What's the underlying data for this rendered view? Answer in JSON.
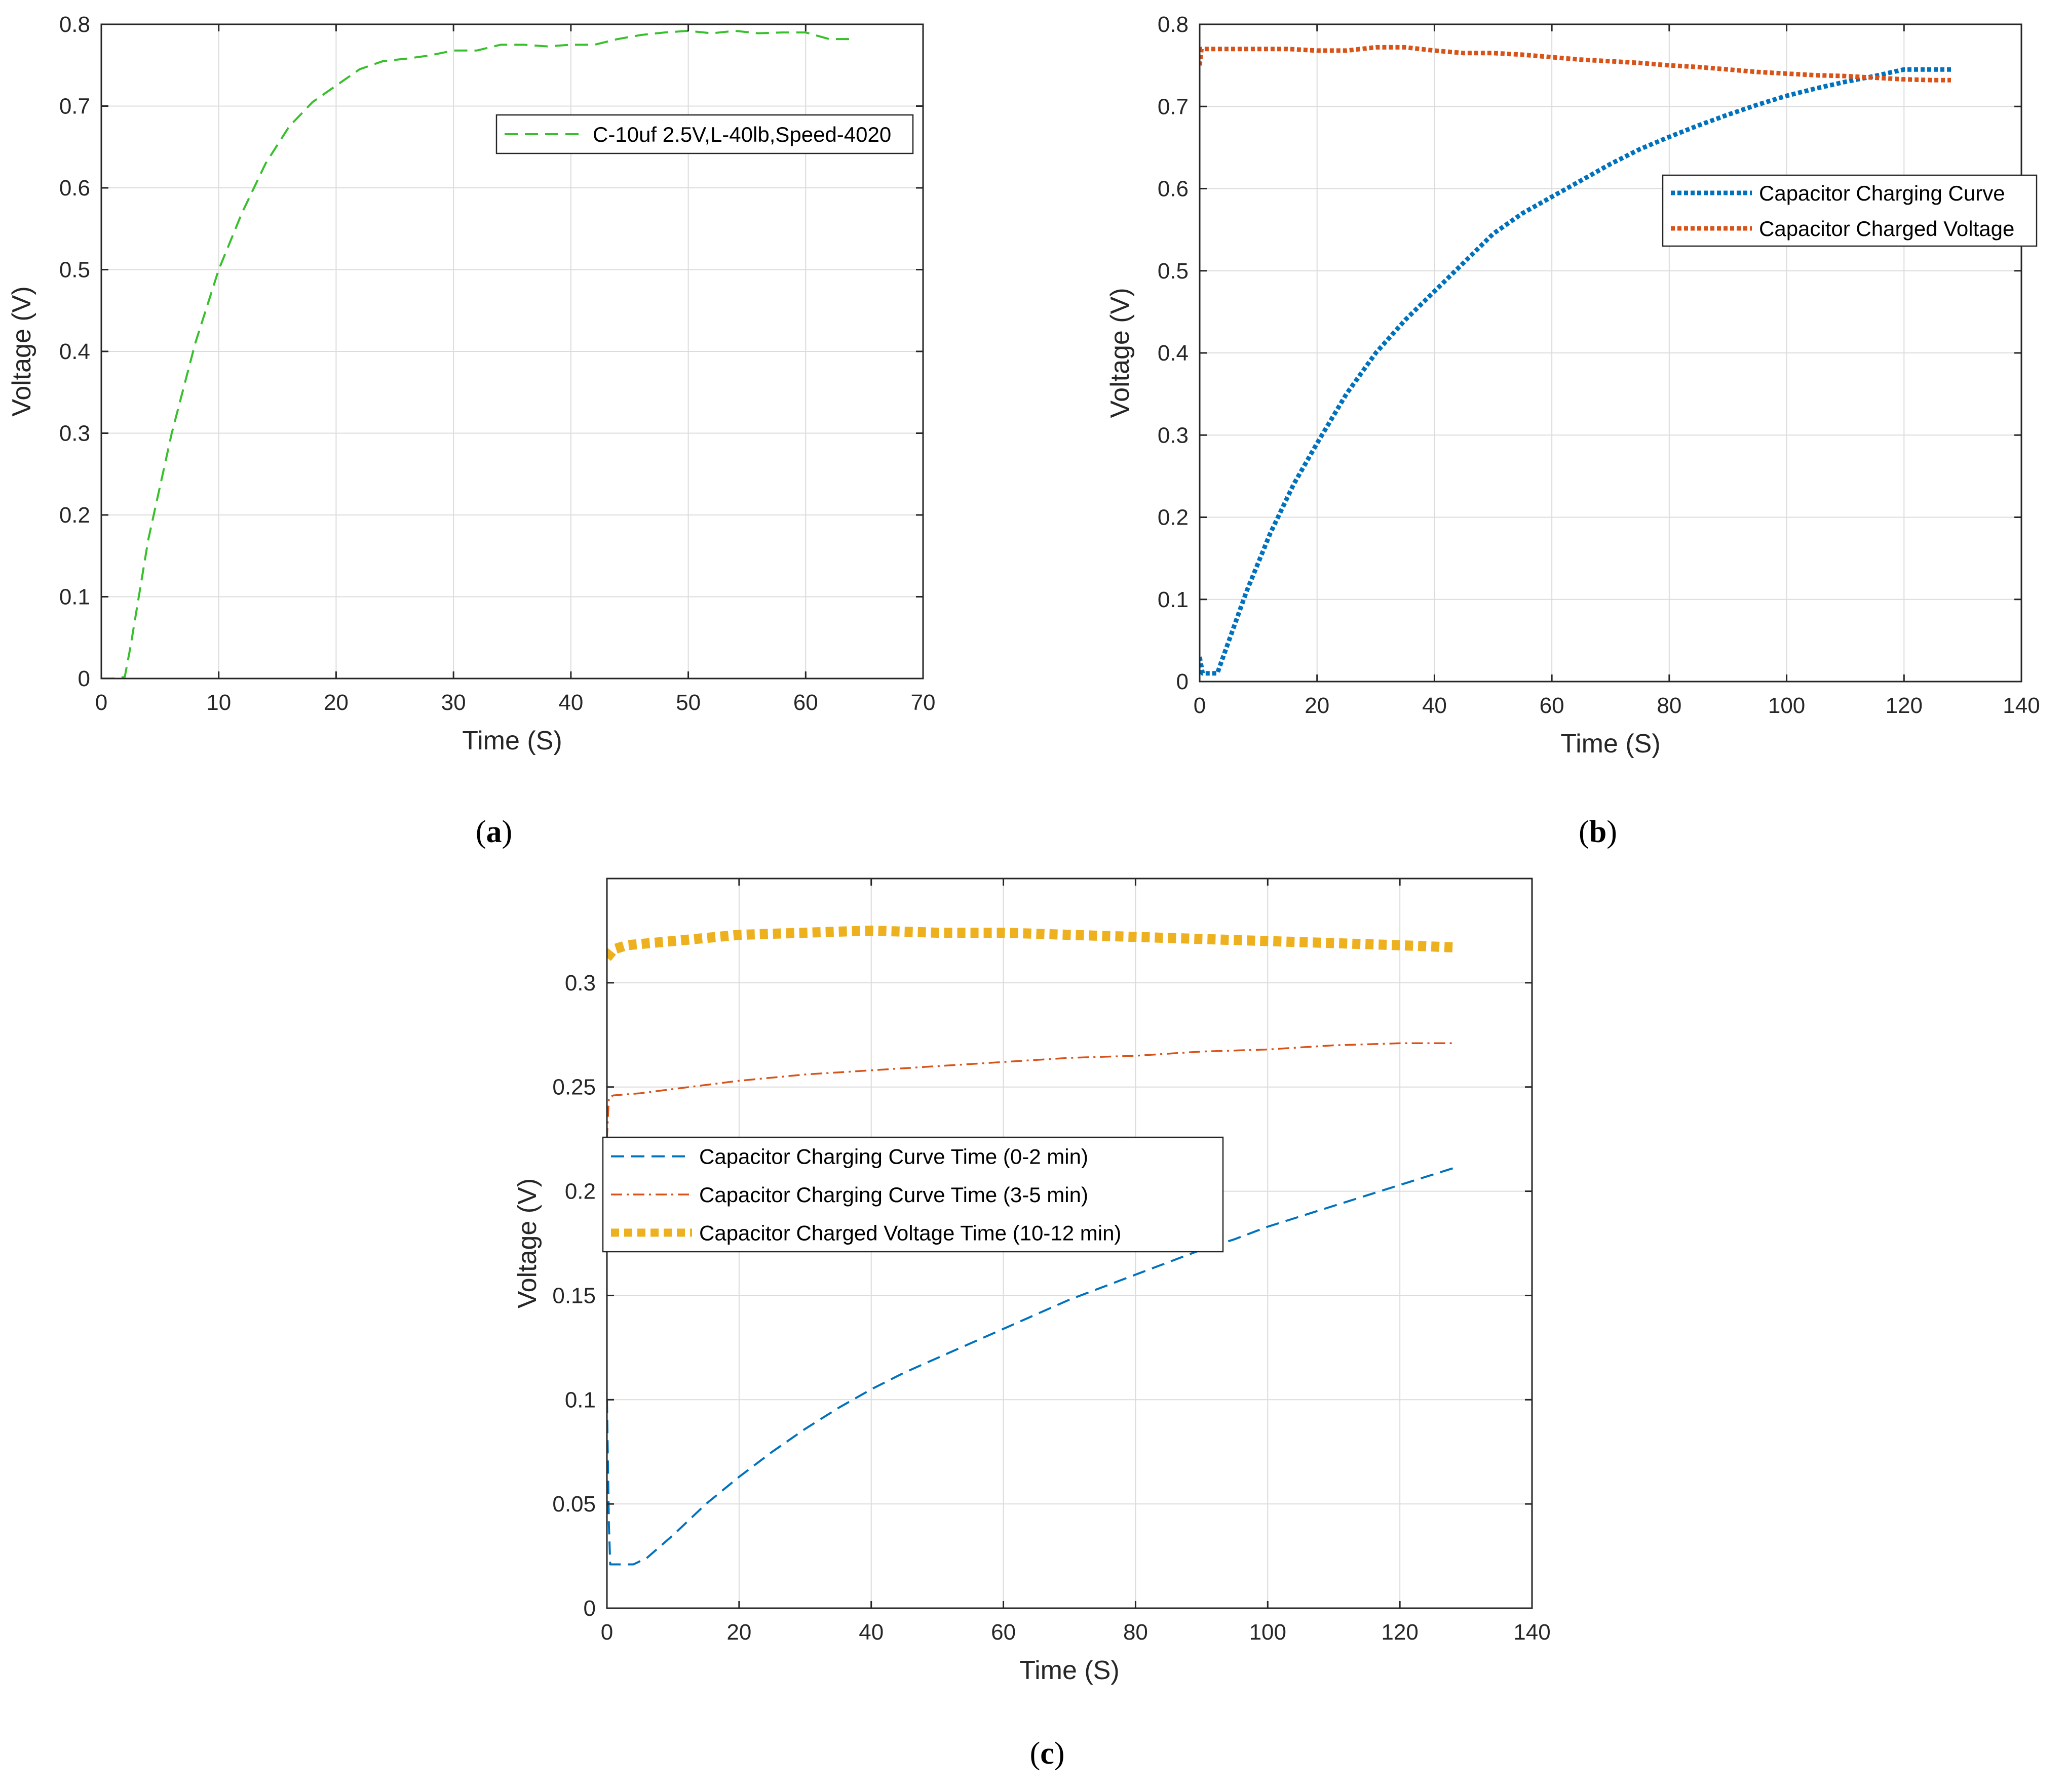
{
  "chart_data": [
    {
      "id": "a",
      "type": "line",
      "caption": "a",
      "xlabel": "Time (S)",
      "ylabel": "Voltage (V)",
      "xlim": [
        0,
        70
      ],
      "ylim": [
        0,
        0.8
      ],
      "xticks": [
        0,
        10,
        20,
        30,
        40,
        50,
        60,
        70
      ],
      "xtick_labels": [
        "0",
        "10",
        "20",
        "30",
        "40",
        "50",
        "60",
        "70"
      ],
      "yticks": [
        0,
        0.1,
        0.2,
        0.3,
        0.4,
        0.5,
        0.6,
        0.7,
        0.8
      ],
      "ytick_labels": [
        "0",
        "0.1",
        "0.2",
        "0.3",
        "0.4",
        "0.5",
        "0.6",
        "0.7",
        "0.8"
      ],
      "grid": true,
      "legend_position": "top-right",
      "series": [
        {
          "name": "C-10uf 2.5V,L-40lb,Speed-4020",
          "color": "#38c02c",
          "style": "dashed",
          "x": [
            0,
            1,
            2,
            2.5,
            4,
            6,
            8,
            10,
            12,
            14,
            16,
            18,
            20,
            22,
            24,
            26,
            28,
            30,
            32,
            34,
            36,
            38,
            40,
            42,
            44,
            46,
            48,
            50,
            52,
            54,
            56,
            58,
            60,
            62,
            64
          ],
          "y": [
            0,
            0,
            0.002,
            0.04,
            0.17,
            0.3,
            0.41,
            0.5,
            0.57,
            0.63,
            0.675,
            0.705,
            0.725,
            0.745,
            0.755,
            0.758,
            0.762,
            0.768,
            0.768,
            0.775,
            0.775,
            0.773,
            0.775,
            0.775,
            0.782,
            0.787,
            0.79,
            0.792,
            0.789,
            0.792,
            0.789,
            0.79,
            0.79,
            0.782,
            0.782
          ]
        }
      ]
    },
    {
      "id": "b",
      "type": "line",
      "caption": "b",
      "xlabel": "Time (S)",
      "ylabel": "Voltage (V)",
      "xlim": [
        0,
        140
      ],
      "ylim": [
        0,
        0.8
      ],
      "xticks": [
        0,
        20,
        40,
        60,
        80,
        100,
        120,
        140
      ],
      "xtick_labels": [
        "0",
        "20",
        "40",
        "60",
        "80",
        "100",
        "120",
        "140"
      ],
      "yticks": [
        0,
        0.1,
        0.2,
        0.3,
        0.4,
        0.5,
        0.6,
        0.7,
        0.8
      ],
      "ytick_labels": [
        "0",
        "0.1",
        "0.2",
        "0.3",
        "0.4",
        "0.5",
        "0.6",
        "0.7",
        "0.8"
      ],
      "grid": true,
      "legend_position": "right",
      "series": [
        {
          "name": "Capacitor Charging Curve",
          "color": "#0072bd",
          "style": "dotted",
          "x": [
            0,
            0.5,
            1,
            3,
            4,
            8,
            12,
            16,
            20,
            25,
            30,
            35,
            40,
            45,
            50,
            55,
            60,
            65,
            70,
            75,
            80,
            85,
            90,
            95,
            100,
            105,
            110,
            115,
            120,
            125,
            128
          ],
          "y": [
            0.03,
            0.01,
            0.01,
            0.01,
            0.03,
            0.11,
            0.18,
            0.24,
            0.29,
            0.35,
            0.4,
            0.44,
            0.475,
            0.51,
            0.545,
            0.57,
            0.59,
            0.61,
            0.63,
            0.648,
            0.663,
            0.677,
            0.69,
            0.702,
            0.713,
            0.722,
            0.73,
            0.737,
            0.745,
            0.745,
            0.745
          ]
        },
        {
          "name": "Capacitor Charged Voltage",
          "color": "#d95319",
          "style": "dotted",
          "x": [
            0,
            0.3,
            1,
            5,
            10,
            15,
            20,
            25,
            30,
            35,
            40,
            45,
            50,
            55,
            60,
            65,
            70,
            75,
            80,
            85,
            90,
            95,
            100,
            105,
            110,
            115,
            120,
            125,
            128
          ],
          "y": [
            0.75,
            0.77,
            0.77,
            0.77,
            0.77,
            0.77,
            0.768,
            0.768,
            0.772,
            0.772,
            0.768,
            0.765,
            0.765,
            0.763,
            0.76,
            0.757,
            0.755,
            0.753,
            0.75,
            0.748,
            0.745,
            0.742,
            0.74,
            0.738,
            0.737,
            0.735,
            0.733,
            0.732,
            0.732
          ]
        }
      ]
    },
    {
      "id": "c",
      "type": "line",
      "caption": "c",
      "xlabel": "Time (S)",
      "ylabel": "Voltage (V)",
      "xlim": [
        0,
        140
      ],
      "ylim": [
        0,
        0.35
      ],
      "xticks": [
        0,
        20,
        40,
        60,
        80,
        100,
        120,
        140
      ],
      "xtick_labels": [
        "0",
        "20",
        "40",
        "60",
        "80",
        "100",
        "120",
        "140"
      ],
      "yticks": [
        0,
        0.05,
        0.1,
        0.15,
        0.2,
        0.25,
        0.3
      ],
      "ytick_labels": [
        "0",
        "0.05",
        "0.1",
        "0.15",
        "0.2",
        "0.25",
        "0.3"
      ],
      "grid": true,
      "legend_position": "left",
      "series": [
        {
          "name": "Capacitor Charging Curve Time (0-2 min)",
          "color": "#0072bd",
          "style": "dashed",
          "x": [
            0,
            0.3,
            0.5,
            2,
            4,
            6,
            10,
            15,
            20,
            25,
            30,
            35,
            40,
            45,
            50,
            55,
            60,
            65,
            70,
            75,
            80,
            85,
            90,
            95,
            100,
            105,
            110,
            115,
            120,
            125,
            128
          ],
          "y": [
            0.1,
            0.04,
            0.021,
            0.021,
            0.021,
            0.024,
            0.035,
            0.05,
            0.063,
            0.075,
            0.086,
            0.096,
            0.105,
            0.113,
            0.12,
            0.127,
            0.134,
            0.141,
            0.148,
            0.154,
            0.16,
            0.166,
            0.172,
            0.177,
            0.183,
            0.188,
            0.193,
            0.198,
            0.203,
            0.208,
            0.211
          ]
        },
        {
          "name": "Capacitor Charging Curve Time (3-5 min)",
          "color": "#d95319",
          "style": "dashdot",
          "x": [
            0,
            0.3,
            1,
            5,
            10,
            20,
            30,
            40,
            50,
            60,
            70,
            80,
            90,
            100,
            110,
            120,
            128
          ],
          "y": [
            0.225,
            0.245,
            0.246,
            0.247,
            0.249,
            0.253,
            0.256,
            0.258,
            0.26,
            0.262,
            0.264,
            0.265,
            0.267,
            0.268,
            0.27,
            0.271,
            0.271
          ]
        },
        {
          "name": "Capacitor Charged Voltage Time (10-12 min)",
          "color": "#edb120",
          "style": "thick-dotted",
          "x": [
            0,
            1,
            3,
            10,
            20,
            30,
            40,
            50,
            60,
            70,
            80,
            90,
            100,
            110,
            120,
            128
          ],
          "y": [
            0.312,
            0.316,
            0.318,
            0.32,
            0.323,
            0.324,
            0.325,
            0.324,
            0.324,
            0.323,
            0.322,
            0.321,
            0.32,
            0.319,
            0.318,
            0.317
          ]
        }
      ]
    }
  ]
}
